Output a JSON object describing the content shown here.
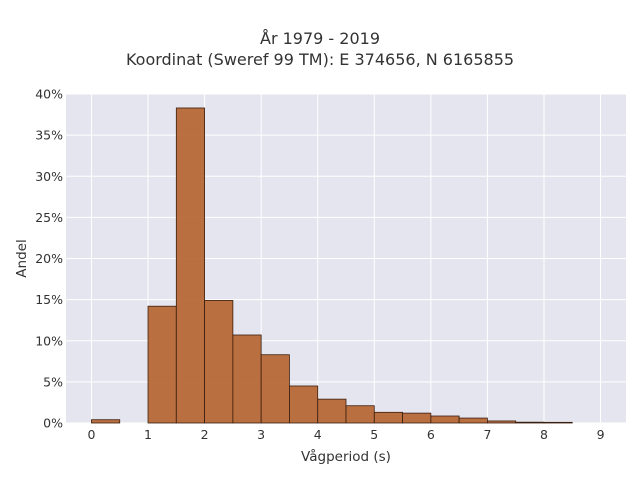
{
  "chart_data": {
    "type": "bar",
    "title": "År 1979 - 2019",
    "subtitle": "Koordinat (Sweref 99 TM): E 374656, N 6165855",
    "xlabel": "Vågperiod (s)",
    "ylabel": "Andel",
    "xlim": [
      -0.45,
      9.45
    ],
    "ylim": [
      0,
      40
    ],
    "x_ticks": [
      0,
      1,
      2,
      3,
      4,
      5,
      6,
      7,
      8,
      9
    ],
    "y_ticks": [
      0,
      5,
      10,
      15,
      20,
      25,
      30,
      35,
      40
    ],
    "y_tick_labels": [
      "0%",
      "5%",
      "10%",
      "15%",
      "20%",
      "25%",
      "30%",
      "35%",
      "40%"
    ],
    "bin_width": 0.5,
    "bins": [
      {
        "x0": 0.0,
        "x1": 0.5,
        "value": 0.4
      },
      {
        "x0": 1.0,
        "x1": 1.5,
        "value": 14.2
      },
      {
        "x0": 1.5,
        "x1": 2.0,
        "value": 38.3
      },
      {
        "x0": 2.0,
        "x1": 2.5,
        "value": 14.9
      },
      {
        "x0": 2.5,
        "x1": 3.0,
        "value": 10.7
      },
      {
        "x0": 3.0,
        "x1": 3.5,
        "value": 8.3
      },
      {
        "x0": 3.5,
        "x1": 4.0,
        "value": 4.5
      },
      {
        "x0": 4.0,
        "x1": 4.5,
        "value": 2.9
      },
      {
        "x0": 4.5,
        "x1": 5.0,
        "value": 2.1
      },
      {
        "x0": 5.0,
        "x1": 5.5,
        "value": 1.3
      },
      {
        "x0": 5.5,
        "x1": 6.0,
        "value": 1.2
      },
      {
        "x0": 6.0,
        "x1": 6.5,
        "value": 0.85
      },
      {
        "x0": 6.5,
        "x1": 7.0,
        "value": 0.6
      },
      {
        "x0": 7.0,
        "x1": 7.5,
        "value": 0.25
      },
      {
        "x0": 7.5,
        "x1": 8.0,
        "value": 0.1
      },
      {
        "x0": 8.0,
        "x1": 8.5,
        "value": 0.08
      }
    ],
    "grid": true,
    "colors": {
      "bar_fill": "#b5622e",
      "bar_stroke": "#3a1e0e",
      "plot_background": "#e5e5ef",
      "grid": "#ffffff"
    }
  }
}
